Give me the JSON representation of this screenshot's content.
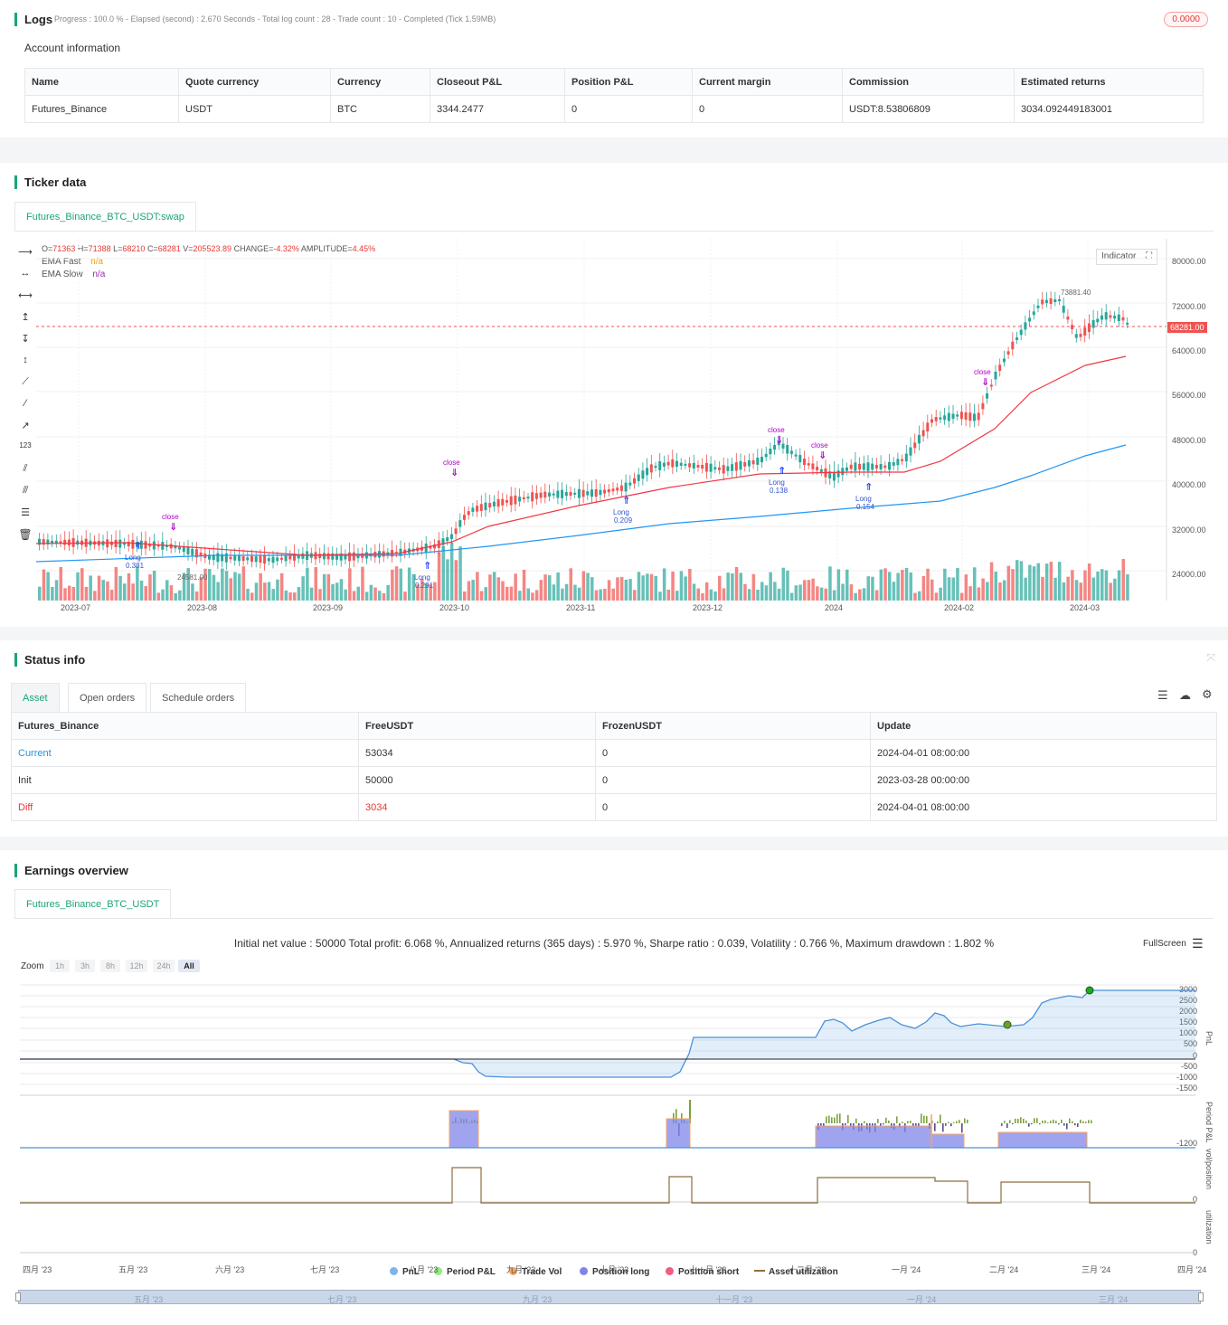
{
  "logs": {
    "title": "Logs",
    "progress_text": "Progress : 100.0 % - Elapsed (second) : 2.670  Seconds - Total log count : 28 - Trade count : 10 - Completed (Tick 1.59MB)",
    "badge": "0.0000",
    "account_title": "Account information",
    "account_headers": [
      "Name",
      "Quote currency",
      "Currency",
      "Closeout P&L",
      "Position P&L",
      "Current margin",
      "Commission",
      "Estimated returns"
    ],
    "account_row": [
      "Futures_Binance",
      "USDT",
      "BTC",
      "3344.2477",
      "0",
      "0",
      "USDT:8.53806809",
      "3034.092449183001"
    ]
  },
  "ticker": {
    "title": "Ticker data",
    "tab": "Futures_Binance_BTC_USDT:swap",
    "ohlc": {
      "o_label": "O=",
      "o": "71363",
      "h_label": "H=",
      "h": "71388",
      "l_label": "L=",
      "l": "68210",
      "c_label": "C=",
      "c": "68281",
      "v_label": "V=",
      "v": "205523.89",
      "chg_label": "CHANGE=",
      "chg": "-4.32%",
      "amp_label": "AMPLITUDE=",
      "amp": "4.45%"
    },
    "ema_fast_label": "EMA Fast",
    "ema_fast_value": "n/a",
    "ema_slow_label": "EMA Slow",
    "ema_slow_value": "n/a",
    "indicator_btn": "Indicator",
    "price_ticks": [
      "80000.00",
      "72000.00",
      "64000.00",
      "56000.00",
      "48000.00",
      "40000.00",
      "32000.00",
      "24000.00"
    ],
    "current_price": "68281.00",
    "high_marker": "73881.40",
    "low_marker": "24581.00",
    "x_ticks": [
      "2023-07",
      "2023-08",
      "2023-09",
      "2023-10",
      "2023-11",
      "2023-12",
      "2024",
      "2024-02",
      "2024-03"
    ],
    "markers": [
      {
        "type": "long",
        "label": "Long",
        "qty": "0.381"
      },
      {
        "type": "close",
        "label": "close"
      },
      {
        "type": "long",
        "label": "Long",
        "qty": "0.291"
      },
      {
        "type": "close",
        "label": "close"
      },
      {
        "type": "long",
        "label": "Long",
        "qty": "0.209"
      },
      {
        "type": "close",
        "label": "close"
      },
      {
        "type": "long",
        "label": "Long",
        "qty": "0.138"
      },
      {
        "type": "close",
        "label": "close"
      },
      {
        "type": "long",
        "label": "Long",
        "qty": "0.154"
      },
      {
        "type": "close",
        "label": "close"
      }
    ],
    "colors": {
      "up": "#26a69a",
      "down": "#ef5350",
      "ema_fast": "#f23645",
      "ema_slow": "#2196f3"
    }
  },
  "status": {
    "title": "Status info",
    "tabs": [
      "Asset",
      "Open orders",
      "Schedule orders"
    ],
    "headers": [
      "Futures_Binance",
      "FreeUSDT",
      "FrozenUSDT",
      "Update"
    ],
    "rows": [
      [
        "Current",
        "53034",
        "0",
        "2024-04-01 08:00:00"
      ],
      [
        "Init",
        "50000",
        "0",
        "2023-03-28 00:00:00"
      ],
      [
        "Diff",
        "3034",
        "0",
        "2024-04-01 08:00:00"
      ]
    ]
  },
  "earnings": {
    "title": "Earnings overview",
    "tab": "Futures_Binance_BTC_USDT",
    "summary": "Initial net value : 50000 Total profit: 6.068 %, Annualized returns (365 days) : 5.970 %, Sharpe ratio : 0.039, Volatility : 0.766 %, Maximum drawdown : 1.802 %",
    "fullscreen": "FullScreen",
    "zoom_label": "Zoom",
    "zoom_buttons": [
      "1h",
      "3h",
      "8h",
      "12h",
      "24h",
      "All"
    ],
    "pnl_ticks": [
      "3000",
      "2500",
      "2000",
      "1500",
      "1000",
      "500",
      "0",
      "-500",
      "-1000",
      "-1500"
    ],
    "period_tick": "-1200",
    "pos_tick": "0",
    "util_tick": "0",
    "axis_titles": [
      "PnL",
      "Period P&L",
      "vol/position",
      "utilization"
    ],
    "x_ticks": [
      "四月 '23",
      "五月 '23",
      "六月 '23",
      "七月 '23",
      "八月 '23",
      "九月 '23",
      "十月 '23",
      "十一月 '23",
      "十二月 '23",
      "一月 '24",
      "二月 '24",
      "三月 '24",
      "四月 '24"
    ],
    "nav_ticks": [
      "五月 '23",
      "七月 '23",
      "九月 '23",
      "十一月 '23",
      "一月 '24",
      "三月 '24"
    ],
    "legend": [
      {
        "name": "PnL",
        "color": "#7cb5ec"
      },
      {
        "name": "Period P&L",
        "color": "#90ed7d"
      },
      {
        "name": "Trade Vol",
        "color": "#f7a35c"
      },
      {
        "name": "Position long",
        "color": "#8085e9"
      },
      {
        "name": "Position short",
        "color": "#f15c80"
      },
      {
        "name": "Asset utilization",
        "color": "#8d6e3f"
      }
    ]
  }
}
